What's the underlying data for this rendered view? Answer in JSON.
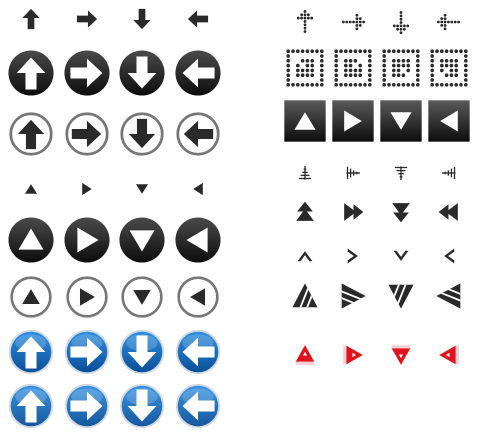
{
  "directions": [
    "up",
    "right",
    "down",
    "left"
  ],
  "colors": {
    "background": "#ffffff",
    "dark": "#2a2a2a",
    "dark_gradient_top": "#4a4a4a",
    "dark_gradient_bottom": "#0d0d0d",
    "ring_gray": "#777777",
    "blue_top": "#2f8fe0",
    "blue_bottom": "#0a4f99",
    "red": "#e0141e",
    "white": "#ffffff"
  },
  "left_panel": {
    "rows": [
      {
        "style": "plain-arrow",
        "icon": "arrow-icon"
      },
      {
        "style": "dark-circle-arrow",
        "icon": "circle-arrow-icon"
      },
      {
        "style": "outline-circle-arrow",
        "icon": "outline-circle-arrow-icon"
      },
      {
        "style": "small-triangle",
        "icon": "triangle-icon"
      },
      {
        "style": "dark-circle-triangle",
        "icon": "circle-triangle-icon"
      },
      {
        "style": "outline-circle-triangle",
        "icon": "outline-circle-triangle-icon"
      },
      {
        "style": "blue-circle-arrow",
        "icon": "blue-circle-arrow-icon"
      },
      {
        "style": "blue-circle-arrow-reflection",
        "icon": "blue-circle-arrow-reflection-icon"
      }
    ]
  },
  "right_panel": {
    "rows": [
      {
        "style": "dotted-arrow",
        "icon": "dotted-arrow-icon"
      },
      {
        "style": "dotted-square",
        "icon": "dotted-square-icon"
      },
      {
        "style": "dark-square-triangle",
        "icon": "square-triangle-icon"
      },
      {
        "style": "stacked-lines",
        "icon": "stacked-lines-icon"
      },
      {
        "style": "double-triangle",
        "icon": "double-triangle-icon"
      },
      {
        "style": "chevron",
        "icon": "chevron-icon"
      },
      {
        "style": "striped-triangle",
        "icon": "striped-triangle-icon"
      },
      {
        "style": "red-triangle",
        "icon": "red-triangle-icon"
      }
    ]
  }
}
